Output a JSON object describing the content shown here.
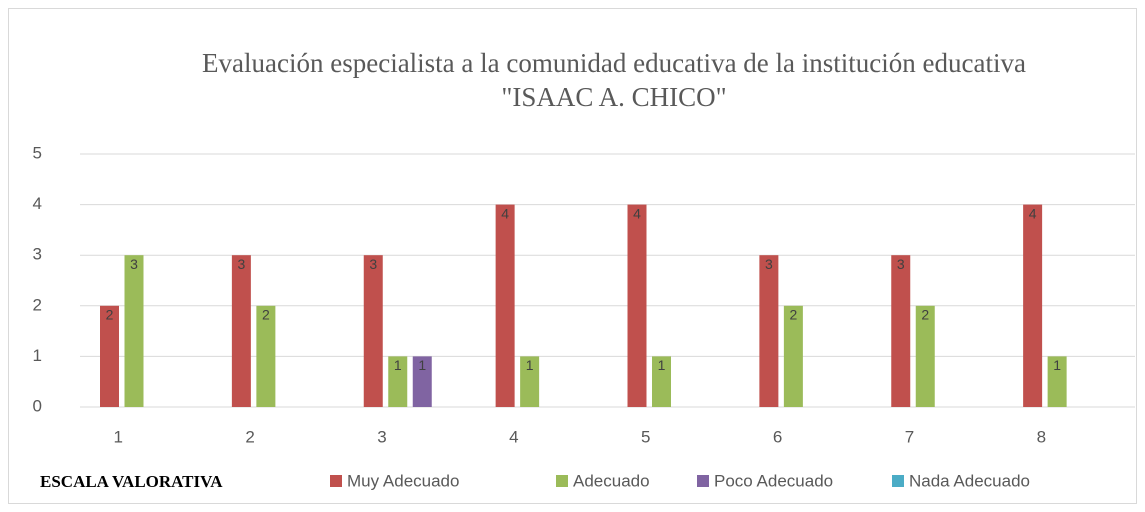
{
  "chart_data": {
    "type": "bar",
    "title": [
      "Evaluación especialista a la comunidad educativa de la institución educativa",
      "\"ISAAC A. CHICO\""
    ],
    "legend_title": "ESCALA VALORATIVA",
    "categories": [
      "1",
      "2",
      "3",
      "4",
      "5",
      "6",
      "7",
      "8"
    ],
    "series": [
      {
        "name": "Muy Adecuado",
        "color": "#c0504d",
        "values": [
          2,
          3,
          3,
          4,
          4,
          3,
          3,
          4
        ]
      },
      {
        "name": "Adecuado",
        "color": "#9bbb59",
        "values": [
          3,
          2,
          1,
          1,
          1,
          2,
          2,
          1
        ]
      },
      {
        "name": "Poco Adecuado",
        "color": "#8064a2",
        "values": [
          0,
          0,
          1,
          0,
          0,
          0,
          0,
          0
        ]
      },
      {
        "name": "Nada Adecuado",
        "color": "#4bacc6",
        "values": [
          0,
          0,
          0,
          0,
          0,
          0,
          0,
          0
        ]
      }
    ],
    "ylim": [
      0,
      5
    ],
    "yticks": [
      0,
      1,
      2,
      3,
      4,
      5
    ],
    "grid": true,
    "legend": "bottom"
  }
}
